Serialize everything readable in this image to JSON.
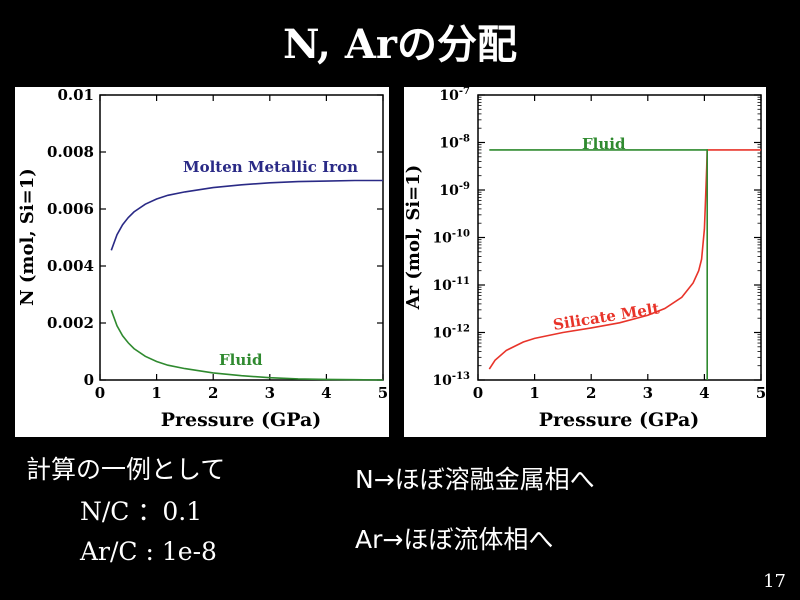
{
  "slide": {
    "title": "N, Arの分配",
    "page_number": "17"
  },
  "notes": {
    "left_heading": "計算の一例として",
    "nc": "N/C ：0.1",
    "arc": "Ar/C : 1e-8",
    "n_line": "N→ほぼ溶融金属相へ",
    "ar_line": "Ar→ほぼ流体相へ"
  },
  "chart_data": [
    {
      "type": "line",
      "xlabel": "Pressure (GPa)",
      "ylabel": "N (mol, Si=1)",
      "xlim": [
        0,
        5
      ],
      "ylim": [
        0,
        0.01
      ],
      "x_ticks": [
        "0",
        "1",
        "2",
        "3",
        "4",
        "5"
      ],
      "y_ticks": [
        "0",
        "0.002",
        "0.004",
        "0.006",
        "0.008",
        "0.01"
      ],
      "grid": false,
      "series": [
        {
          "name": "Molten Metallic Iron",
          "color": "#2a2a86",
          "x": [
            0.2,
            0.3,
            0.4,
            0.5,
            0.6,
            0.8,
            1.0,
            1.2,
            1.5,
            2.0,
            2.5,
            3.0,
            3.5,
            4.0,
            4.5,
            5.0
          ],
          "y": [
            0.00455,
            0.0051,
            0.00545,
            0.0057,
            0.0059,
            0.00617,
            0.00635,
            0.00648,
            0.0066,
            0.00675,
            0.00685,
            0.00692,
            0.00696,
            0.00698,
            0.007,
            0.007
          ]
        },
        {
          "name": "Fluid",
          "color": "#2f8a2f",
          "x": [
            0.2,
            0.3,
            0.4,
            0.5,
            0.6,
            0.8,
            1.0,
            1.2,
            1.5,
            2.0,
            2.5,
            3.0,
            3.5,
            4.0,
            4.5,
            5.0
          ],
          "y": [
            0.00245,
            0.0019,
            0.00155,
            0.0013,
            0.0011,
            0.00083,
            0.00065,
            0.00052,
            0.0004,
            0.00025,
            0.00015,
            8e-05,
            4e-05,
            2e-05,
            1e-05,
            0.0
          ]
        }
      ]
    },
    {
      "type": "line",
      "xlabel": "Pressure (GPa)",
      "ylabel": "Ar (mol, Si=1)",
      "xlim": [
        0,
        5
      ],
      "ylim": [
        1e-13,
        1e-07
      ],
      "y_scale": "log",
      "x_ticks": [
        "0",
        "1",
        "2",
        "3",
        "4",
        "5"
      ],
      "y_ticks": [
        "10-13",
        "10-12",
        "10-11",
        "10-10",
        "10-9",
        "10-8",
        "10-7"
      ],
      "grid": false,
      "series": [
        {
          "name": "Silicate Melt",
          "color": "#e8342a",
          "x": [
            0.2,
            0.3,
            0.5,
            0.8,
            1.0,
            1.5,
            2.0,
            2.5,
            3.0,
            3.3,
            3.6,
            3.8,
            3.9,
            3.95,
            4.0,
            4.02,
            4.04,
            4.05,
            4.1,
            4.5,
            5.0
          ],
          "y": [
            1.7e-13,
            2.6e-13,
            4.2e-13,
            6.3e-13,
            7.5e-13,
            1e-12,
            1.25e-12,
            1.6e-12,
            2.3e-12,
            3.2e-12,
            5.5e-12,
            1.1e-11,
            2e-11,
            3.5e-11,
            1.5e-10,
            6e-10,
            3e-09,
            7e-09,
            7e-09,
            7e-09,
            7e-09
          ]
        },
        {
          "name": "Fluid",
          "color": "#2f8a2f",
          "x": [
            0.2,
            1.0,
            2.0,
            3.0,
            4.0,
            4.04,
            4.05,
            4.05
          ],
          "y": [
            7e-09,
            7e-09,
            7e-09,
            7e-09,
            7e-09,
            7e-09,
            7e-09,
            1e-13
          ]
        }
      ]
    }
  ]
}
